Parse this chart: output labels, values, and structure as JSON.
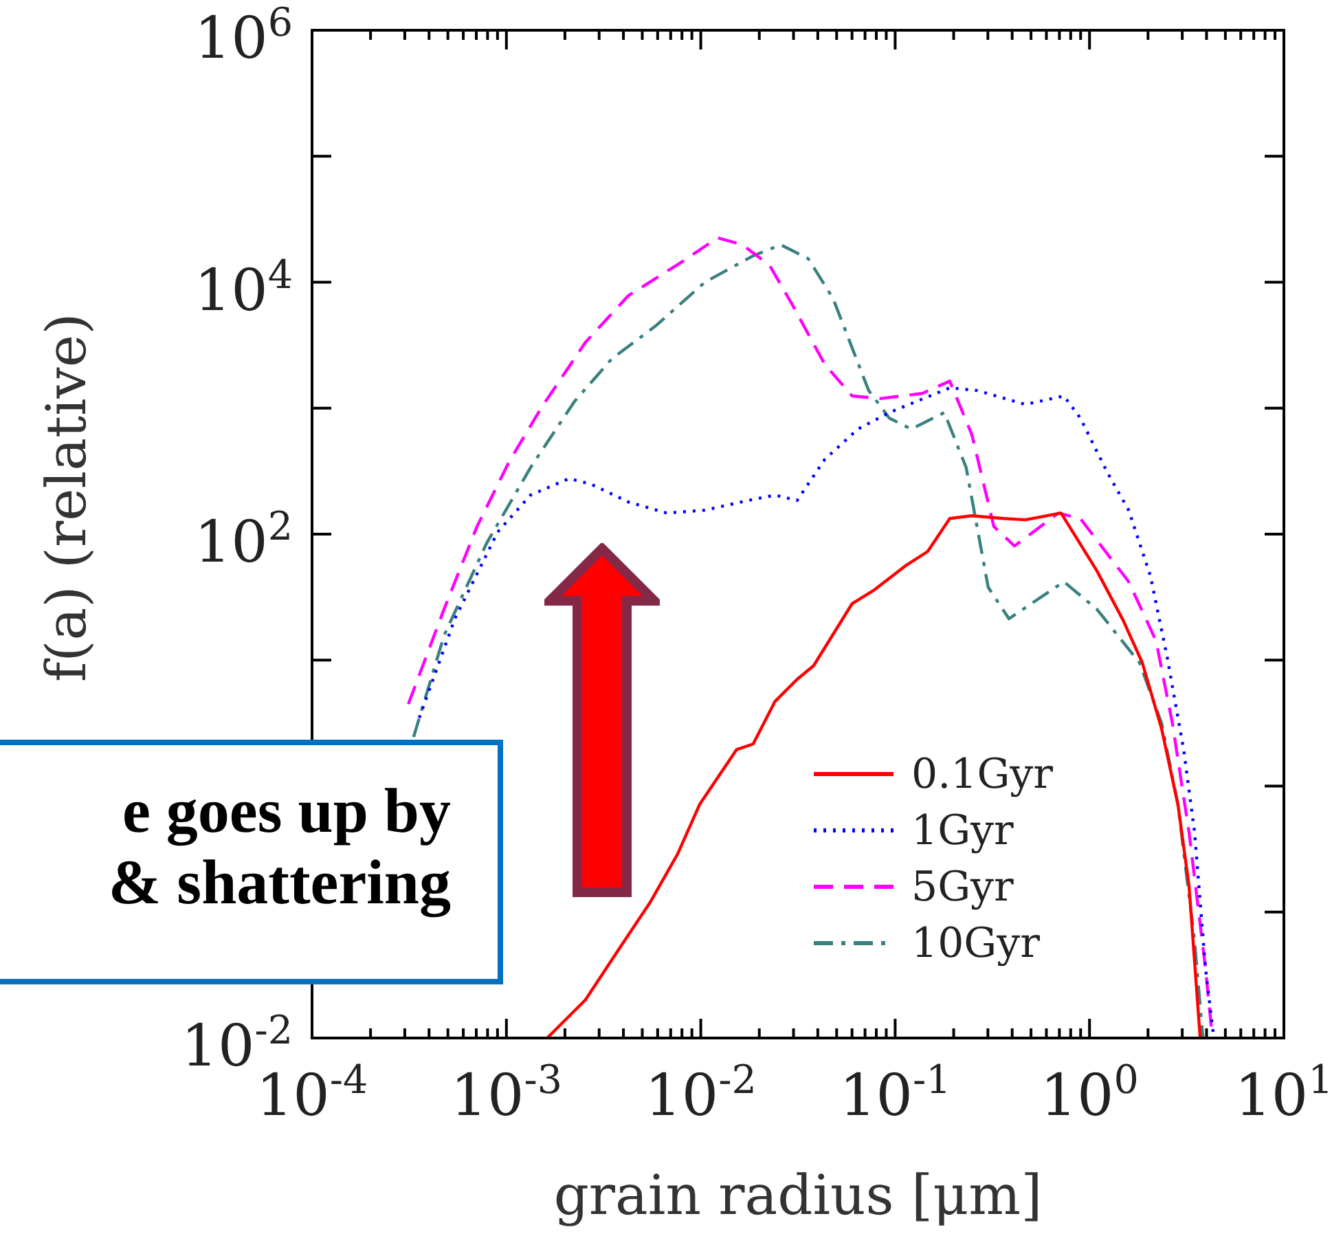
{
  "chart_data": {
    "type": "line",
    "xlabel": "grain radius [μm]",
    "ylabel": "f(a) (relative)",
    "log": "xy",
    "legend": "bottom right",
    "grid": false,
    "marker": "none",
    "xlim": [
      0.0001,
      10
    ],
    "ylim": [
      0.01,
      1000000
    ],
    "xticks": [
      {
        "value": 0.0001,
        "label": "10$^{-4}$"
      },
      {
        "value": 0.0002,
        "label": null
      },
      {
        "value": 0.0003,
        "label": null
      },
      {
        "value": 0.0004,
        "label": null
      },
      {
        "value": 0.0005,
        "label": null
      },
      {
        "value": 0.0006,
        "label": null
      },
      {
        "value": 0.0007,
        "label": null
      },
      {
        "value": 0.0008,
        "label": null
      },
      {
        "value": 0.0009,
        "label": null
      },
      {
        "value": 0.001,
        "label": "10$^{-3}$"
      },
      {
        "value": 0.002,
        "label": null
      },
      {
        "value": 0.003,
        "label": null
      },
      {
        "value": 0.004,
        "label": null
      },
      {
        "value": 0.005,
        "label": null
      },
      {
        "value": 0.006,
        "label": null
      },
      {
        "value": 0.007,
        "label": null
      },
      {
        "value": 0.008,
        "label": null
      },
      {
        "value": 0.009,
        "label": null
      },
      {
        "value": 0.01,
        "label": "10$^{-2}$"
      },
      {
        "value": 0.02,
        "label": null
      },
      {
        "value": 0.03,
        "label": null
      },
      {
        "value": 0.04,
        "label": null
      },
      {
        "value": 0.05,
        "label": null
      },
      {
        "value": 0.06,
        "label": null
      },
      {
        "value": 0.07,
        "label": null
      },
      {
        "value": 0.08,
        "label": null
      },
      {
        "value": 0.09,
        "label": null
      },
      {
        "value": 0.1,
        "label": "10$^{-1}$"
      },
      {
        "value": 0.2,
        "label": null
      },
      {
        "value": 0.3,
        "label": null
      },
      {
        "value": 0.4,
        "label": null
      },
      {
        "value": 0.5,
        "label": null
      },
      {
        "value": 0.6,
        "label": null
      },
      {
        "value": 0.7,
        "label": null
      },
      {
        "value": 0.8,
        "label": null
      },
      {
        "value": 0.9,
        "label": null
      },
      {
        "value": 1,
        "label": "10$^{0}$"
      },
      {
        "value": 2,
        "label": null
      },
      {
        "value": 3,
        "label": null
      },
      {
        "value": 4,
        "label": null
      },
      {
        "value": 5,
        "label": null
      },
      {
        "value": 6,
        "label": null
      },
      {
        "value": 7,
        "label": null
      },
      {
        "value": 8,
        "label": null
      },
      {
        "value": 9,
        "label": null
      },
      {
        "value": 10,
        "label": "10$^{1}$"
      }
    ],
    "yticks": [
      {
        "value": 0.01,
        "label": "10$^{-2}$"
      },
      {
        "value": 0.1,
        "label": null
      },
      {
        "value": 1,
        "label": null
      },
      {
        "value": 10,
        "label": null
      },
      {
        "value": 100,
        "label": "10$^{2}$"
      },
      {
        "value": 1000,
        "label": null
      },
      {
        "value": 10000,
        "label": "10$^{4}$"
      },
      {
        "value": 100000,
        "label": null
      },
      {
        "value": 1000000,
        "label": "10$^{6}$"
      }
    ],
    "series": [
      {
        "name": "0.1Gyr",
        "color": "#ff0000",
        "line_style": "solid",
        "x": [
          0.00162,
          0.00255,
          0.00372,
          0.0055,
          0.0076,
          0.00986,
          0.0153,
          0.0186,
          0.0241,
          0.0313,
          0.0381,
          0.0601,
          0.0782,
          0.114,
          0.147,
          0.191,
          0.248,
          0.361,
          0.468,
          0.714,
          1.09,
          1.49,
          1.87,
          2.35,
          2.85,
          3.25,
          3.71
        ],
        "values": [
          0.01,
          0.0201,
          0.0485,
          0.12,
          0.289,
          0.714,
          1.95,
          2.16,
          4.7,
          7.03,
          9.04,
          28.1,
          36.1,
          56.6,
          72.8,
          133,
          140,
          133,
          130,
          147,
          51.3,
          20.7,
          9.51,
          2.84,
          0.714,
          0.162,
          0.01
        ]
      },
      {
        "name": "1Gyr",
        "color": "#0000ff",
        "line_style": "dotted",
        "x": [
          0.000356,
          0.000543,
          0.000902,
          0.00133,
          0.0021,
          0.00273,
          0.00424,
          0.00668,
          0.0105,
          0.0175,
          0.0241,
          0.0313,
          0.0435,
          0.0643,
          0.0933,
          0.191,
          0.265,
          0.468,
          0.738,
          0.897,
          1.24,
          1.59,
          2.06,
          2.51,
          3.05,
          3.47,
          3.95,
          4.36
        ],
        "values": [
          3.48,
          21.3,
          104,
          204,
          276,
          249,
          180,
          147,
          155,
          185,
          204,
          185,
          393,
          682,
          923,
          1450,
          1380,
          1070,
          1250,
          834,
          305,
          155,
          46.3,
          10.5,
          1.95,
          0.432,
          0.0359,
          0.01
        ]
      },
      {
        "name": "5Gyr",
        "color": "#ff00ff",
        "line_style": "dashed",
        "x": [
          0.000313,
          0.000478,
          0.000706,
          0.00103,
          0.00152,
          0.00255,
          0.00424,
          0.00811,
          0.0122,
          0.0164,
          0.0226,
          0.0294,
          0.0435,
          0.0601,
          0.0834,
          0.138,
          0.191,
          0.248,
          0.322,
          0.411,
          0.692,
          0.897,
          1.59,
          2.2,
          2.67,
          3.25,
          3.95,
          4.29
        ],
        "values": [
          4.48,
          25.4,
          115,
          373,
          1020,
          3330,
          7820,
          14700,
          22500,
          19800,
          13600,
          6730,
          2220,
          1250,
          1190,
          1310,
          1640,
          617,
          115,
          80.5,
          147,
          133,
          41.9,
          14.2,
          3.15,
          0.432,
          0.0359,
          0.01
        ]
      },
      {
        "name": "10Gyr",
        "color": "#3a8080",
        "line_style": "dashdot",
        "x": [
          0.000333,
          0.000478,
          0.000791,
          0.00133,
          0.00224,
          0.00348,
          0.00586,
          0.0105,
          0.0186,
          0.0258,
          0.0357,
          0.0479,
          0.0632,
          0.0731,
          0.0933,
          0.121,
          0.179,
          0.232,
          0.301,
          0.385,
          0.738,
          1.09,
          1.81,
          2.35,
          2.85,
          3.47,
          3.83
        ],
        "values": [
          2.45,
          15.7,
          84.7,
          337,
          1130,
          2460,
          4500,
          10000,
          16200,
          19800,
          15400,
          7430,
          2460,
          1380,
          834,
          682,
          923,
          337,
          37.9,
          21.3,
          41.9,
          25.4,
          9.51,
          3.15,
          0.714,
          0.0593,
          0.01
        ]
      }
    ],
    "annotations": [
      "e goes up by\n& shattering"
    ]
  }
}
